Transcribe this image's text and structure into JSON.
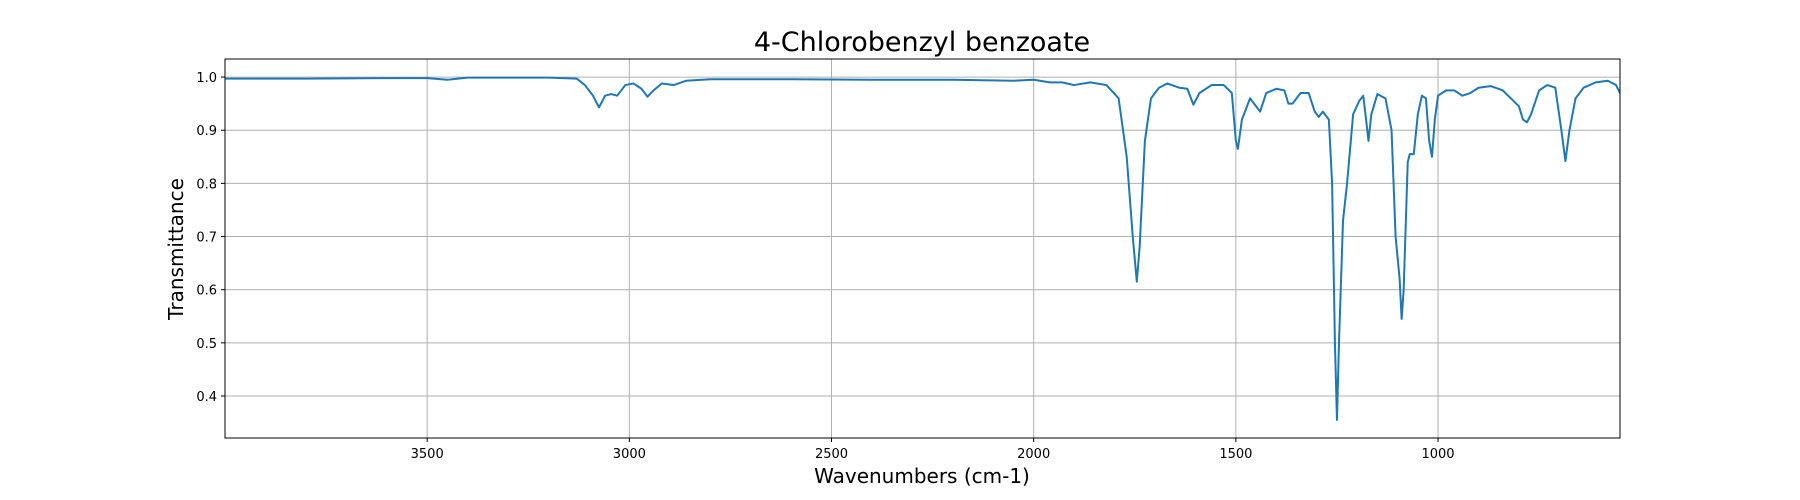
{
  "chart_data": {
    "type": "line",
    "title": "4-Chlorobenzyl benzoate",
    "xlabel": "Wavenumbers (cm-1)",
    "ylabel": "Transmittance",
    "x": [
      4000,
      3800,
      3600,
      3500,
      3450,
      3400,
      3200,
      3130,
      3110,
      3090,
      3075,
      3060,
      3045,
      3030,
      3010,
      2990,
      2970,
      2955,
      2940,
      2920,
      2890,
      2860,
      2800,
      2600,
      2400,
      2200,
      2050,
      2000,
      1960,
      1930,
      1900,
      1860,
      1820,
      1790,
      1770,
      1755,
      1745,
      1738,
      1725,
      1710,
      1690,
      1670,
      1640,
      1620,
      1605,
      1590,
      1560,
      1530,
      1510,
      1500,
      1495,
      1485,
      1465,
      1450,
      1440,
      1425,
      1400,
      1380,
      1370,
      1360,
      1340,
      1320,
      1305,
      1295,
      1285,
      1270,
      1262,
      1255,
      1250,
      1245,
      1235,
      1225,
      1210,
      1195,
      1185,
      1178,
      1172,
      1165,
      1150,
      1130,
      1115,
      1105,
      1095,
      1090,
      1085,
      1075,
      1070,
      1060,
      1050,
      1040,
      1030,
      1022,
      1015,
      1008,
      1000,
      980,
      960,
      940,
      920,
      900,
      870,
      840,
      820,
      800,
      790,
      780,
      770,
      750,
      730,
      710,
      695,
      685,
      675,
      660,
      640,
      610,
      580,
      560,
      550
    ],
    "values": [
      0.997,
      0.997,
      0.998,
      0.998,
      0.995,
      0.999,
      0.999,
      0.997,
      0.985,
      0.965,
      0.943,
      0.965,
      0.968,
      0.965,
      0.985,
      0.988,
      0.978,
      0.963,
      0.975,
      0.988,
      0.985,
      0.993,
      0.996,
      0.996,
      0.995,
      0.995,
      0.993,
      0.995,
      0.99,
      0.99,
      0.985,
      0.99,
      0.985,
      0.96,
      0.85,
      0.7,
      0.615,
      0.68,
      0.88,
      0.96,
      0.98,
      0.988,
      0.98,
      0.978,
      0.948,
      0.97,
      0.985,
      0.985,
      0.97,
      0.88,
      0.865,
      0.92,
      0.96,
      0.945,
      0.935,
      0.97,
      0.978,
      0.975,
      0.95,
      0.95,
      0.97,
      0.97,
      0.935,
      0.925,
      0.935,
      0.92,
      0.8,
      0.5,
      0.355,
      0.5,
      0.73,
      0.8,
      0.93,
      0.955,
      0.965,
      0.92,
      0.88,
      0.93,
      0.968,
      0.96,
      0.9,
      0.7,
      0.62,
      0.545,
      0.6,
      0.84,
      0.855,
      0.855,
      0.93,
      0.965,
      0.96,
      0.88,
      0.85,
      0.92,
      0.965,
      0.975,
      0.975,
      0.965,
      0.97,
      0.98,
      0.983,
      0.975,
      0.96,
      0.945,
      0.92,
      0.915,
      0.93,
      0.975,
      0.985,
      0.98,
      0.9,
      0.842,
      0.9,
      0.96,
      0.98,
      0.99,
      0.993,
      0.985,
      0.97
    ],
    "color": "#1f77b4",
    "xlim": [
      4000,
      550
    ],
    "xticks": [
      3500,
      3000,
      2500,
      2000,
      1500,
      1000
    ],
    "ylim": [
      0.321,
      1.034
    ],
    "yticks": [
      0.4,
      0.5,
      0.6,
      0.7,
      0.8,
      0.9,
      {
        "value": 1,
        "label": "1.0"
      }
    ],
    "grid": true
  }
}
